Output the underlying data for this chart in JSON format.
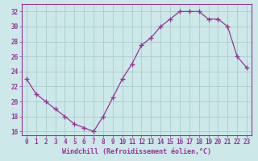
{
  "x": [
    0,
    1,
    2,
    3,
    4,
    5,
    6,
    7,
    8,
    9,
    10,
    11,
    12,
    13,
    14,
    15,
    16,
    17,
    18,
    19,
    20,
    21,
    22,
    23
  ],
  "y": [
    23,
    21,
    20,
    19,
    18,
    17,
    16.5,
    16,
    18,
    20.5,
    23,
    25,
    27.5,
    28.5,
    30,
    31,
    32,
    32,
    32,
    31,
    31,
    30,
    26,
    24.5
  ],
  "line_color": "#993399",
  "marker": "+",
  "marker_size": 4,
  "bg_color": "#cce8e8",
  "grid_color": "#aacccc",
  "xlabel": "Windchill (Refroidissement éolien,°C)",
  "xlim": [
    -0.5,
    23.5
  ],
  "ylim": [
    15.5,
    33
  ],
  "yticks": [
    16,
    18,
    20,
    22,
    24,
    26,
    28,
    30,
    32
  ],
  "xtick_labels": [
    "0",
    "1",
    "2",
    "3",
    "4",
    "5",
    "6",
    "7",
    "8",
    "9",
    "10",
    "11",
    "12",
    "13",
    "14",
    "15",
    "16",
    "17",
    "18",
    "19",
    "20",
    "21",
    "22",
    "23"
  ],
  "tick_color": "#993399",
  "axis_color": "#993399",
  "xlabel_fontsize": 6,
  "tick_fontsize": 5.5,
  "marker_color": "#993399",
  "linewidth": 0.9
}
